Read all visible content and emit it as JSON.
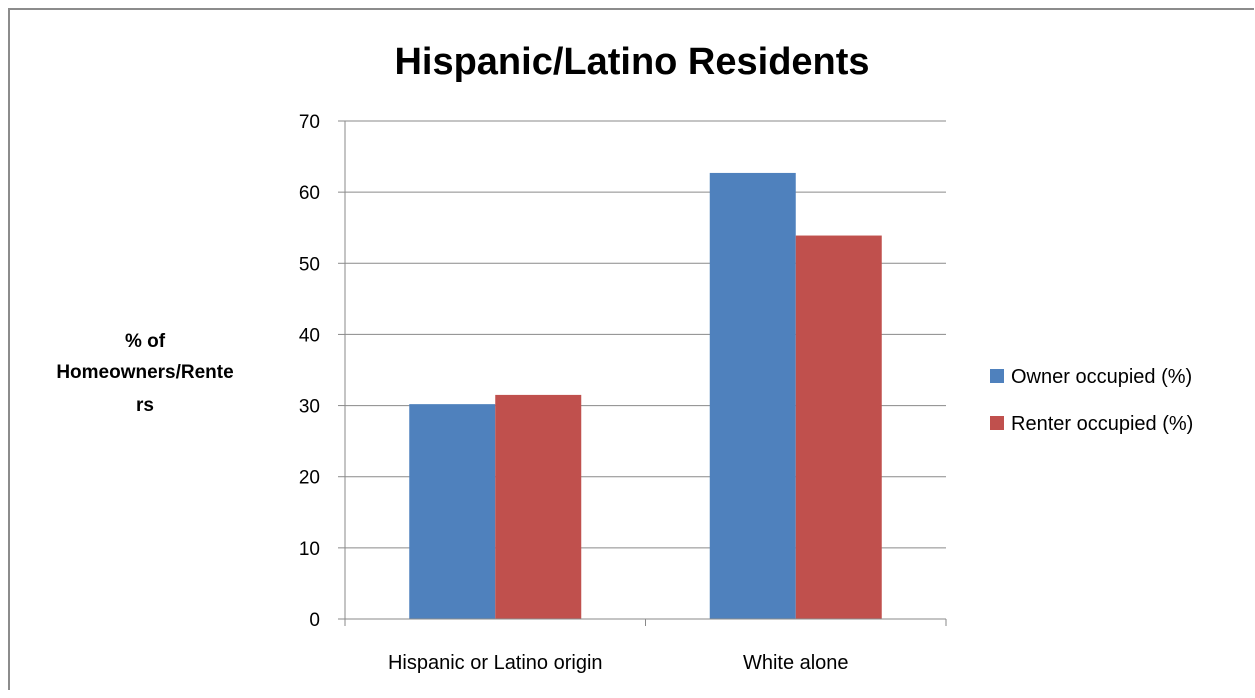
{
  "chart_data": {
    "type": "bar",
    "title": "Hispanic/Latino Residents",
    "ylabel_lines": [
      "% of",
      "Homeowners/Rente",
      "rs"
    ],
    "xlabel": "",
    "categories": [
      "Hispanic or Latino origin",
      "White alone"
    ],
    "series": [
      {
        "name": "Owner occupied (%)",
        "values": [
          30.2,
          62.7
        ],
        "color": "#4f81bd"
      },
      {
        "name": "Renter occupied (%)",
        "values": [
          31.5,
          53.9
        ],
        "color": "#c0504d"
      }
    ],
    "ylim": [
      0,
      70
    ],
    "yticks": [
      0,
      10,
      20,
      30,
      40,
      50,
      60,
      70
    ],
    "grid": true,
    "legend_position": "right"
  }
}
